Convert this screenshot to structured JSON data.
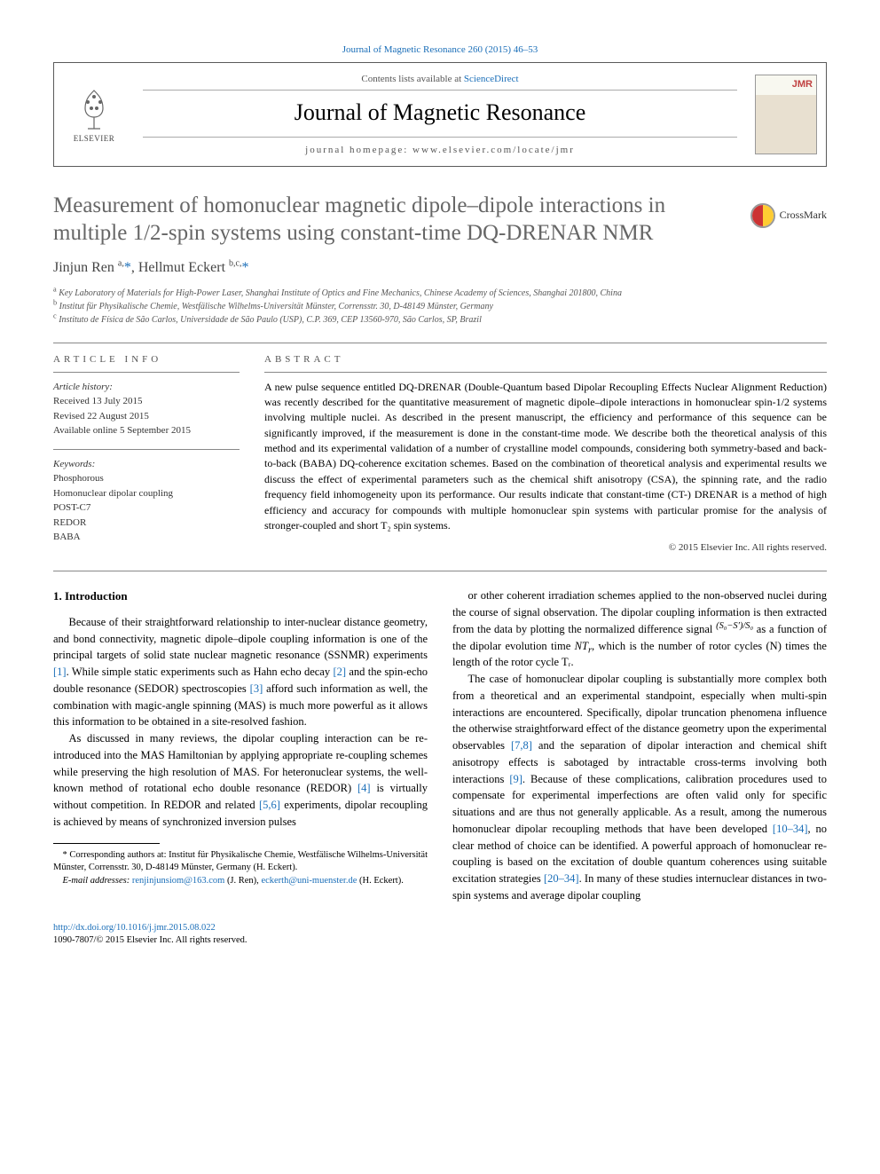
{
  "top_link": {
    "text": "Journal of Magnetic Resonance 260 (2015) 46–53",
    "color": "#1a6eb8"
  },
  "header": {
    "publisher_name": "ELSEVIER",
    "contents_text": "Contents lists available at ",
    "contents_link": "ScienceDirect",
    "journal_name": "Journal of Magnetic Resonance",
    "homepage_label": "journal homepage: www.elsevier.com/locate/jmr",
    "cover_label": "JMR"
  },
  "crossmark_label": "CrossMark",
  "title": "Measurement of homonuclear magnetic dipole–dipole interactions in multiple 1/2-spin systems using constant-time DQ-DRENAR NMR",
  "authors_html": "Jinjun Ren <sup>a,</sup><span class='corr'>*</span>, Hellmut Eckert <sup>b,c,</sup><span class='corr'>*</span>",
  "affiliations": [
    {
      "sup": "a",
      "text": "Key Laboratory of Materials for High-Power Laser, Shanghai Institute of Optics and Fine Mechanics, Chinese Academy of Sciences, Shanghai 201800, China"
    },
    {
      "sup": "b",
      "text": "Institut für Physikalische Chemie, Westfälische Wilhelms-Universität Münster, Corrensstr. 30, D-48149 Münster, Germany"
    },
    {
      "sup": "c",
      "text": "Instituto de Física de São Carlos, Universidade de São Paulo (USP), C.P. 369, CEP 13560-970, São Carlos, SP, Brazil"
    }
  ],
  "article_info": {
    "label": "ARTICLE INFO",
    "history_label": "Article history:",
    "history": [
      "Received 13 July 2015",
      "Revised 22 August 2015",
      "Available online 5 September 2015"
    ],
    "keywords_label": "Keywords:",
    "keywords": [
      "Phosphorous",
      "Homonuclear dipolar coupling",
      "POST-C7",
      "REDOR",
      "BABA"
    ]
  },
  "abstract": {
    "label": "ABSTRACT",
    "text": "A new pulse sequence entitled DQ-DRENAR (Double-Quantum based Dipolar Recoupling Effects Nuclear Alignment Reduction) was recently described for the quantitative measurement of magnetic dipole–dipole interactions in homonuclear spin-1/2 systems involving multiple nuclei. As described in the present manuscript, the efficiency and performance of this sequence can be significantly improved, if the measurement is done in the constant-time mode. We describe both the theoretical analysis of this method and its experimental validation of a number of crystalline model compounds, considering both symmetry-based and back-to-back (BABA) DQ-coherence excitation schemes. Based on the combination of theoretical analysis and experimental results we discuss the effect of experimental parameters such as the chemical shift anisotropy (CSA), the spinning rate, and the radio frequency field inhomogeneity upon its performance. Our results indicate that constant-time (CT-) DRENAR is a method of high efficiency and accuracy for compounds with multiple homonuclear spin systems with particular promise for the analysis of stronger-coupled and short T₂ spin systems.",
    "copyright": "© 2015 Elsevier Inc. All rights reserved."
  },
  "body": {
    "heading": "1. Introduction",
    "p1": "Because of their straightforward relationship to inter-nuclear distance geometry, and bond connectivity, magnetic dipole–dipole coupling information is one of the principal targets of solid state nuclear magnetic resonance (SSNMR) experiments [1]. While simple static experiments such as Hahn echo decay [2] and the spin-echo double resonance (SEDOR) spectroscopies [3] afford such information as well, the combination with magic-angle spinning (MAS) is much more powerful as it allows this information to be obtained in a site-resolved fashion.",
    "p2": "As discussed in many reviews, the dipolar coupling interaction can be re-introduced into the MAS Hamiltonian by applying appropriate re-coupling schemes while preserving the high resolution of MAS. For heteronuclear systems, the well-known method of rotational echo double resonance (REDOR) [4] is virtually without competition. In REDOR and related [5,6] experiments, dipolar recoupling is achieved by means of synchronized inversion pulses",
    "p3_pre": "or other coherent irradiation schemes applied to the non-observed nuclei during the course of signal observation. The dipolar coupling information is then extracted from the data by plotting the normalized difference signal ",
    "p3_formula": "(S₀−S′)/S₀",
    "p3_mid": " as a function of the dipolar evolution time ",
    "p3_post": ", which is the number of rotor cycles (N) times the length of the rotor cycle Tᵣ.",
    "p4": "The case of homonuclear dipolar coupling is substantially more complex both from a theoretical and an experimental standpoint, especially when multi-spin interactions are encountered. Specifically, dipolar truncation phenomena influence the otherwise straightforward effect of the distance geometry upon the experimental observables [7,8] and the separation of dipolar interaction and chemical shift anisotropy effects is sabotaged by intractable cross-terms involving both interactions [9]. Because of these complications, calibration procedures used to compensate for experimental imperfections are often valid only for specific situations and are thus not generally applicable. As a result, among the numerous homonuclear dipolar recoupling methods that have been developed [10–34], no clear method of choice can be identified. A powerful approach of homonuclear re-coupling is based on the excitation of double quantum coherences using suitable excitation strategies [20–34]. In many of these studies internuclear distances in two-spin systems and average dipolar coupling",
    "refs": {
      "r1": "[1]",
      "r2": "[2]",
      "r3": "[3]",
      "r4": "[4]",
      "r56": "[5,6]",
      "r78": "[7,8]",
      "r9": "[9]",
      "r1034": "[10–34]",
      "r2034": "[20–34]"
    }
  },
  "footnotes": {
    "corr": "* Corresponding authors at: Institut für Physikalische Chemie, Westfälische Wilhelms-Universität Münster, Corrensstr. 30, D-48149 Münster, Germany (H. Eckert).",
    "email_label": "E-mail addresses: ",
    "email1": "renjinjunsiom@163.com",
    "email1_who": " (J. Ren), ",
    "email2": "eckerth@uni-muenster.de",
    "email2_who": " (H. Eckert)."
  },
  "footer": {
    "doi": "http://dx.doi.org/10.1016/j.jmr.2015.08.022",
    "issn": "1090-7807/© 2015 Elsevier Inc. All rights reserved."
  },
  "colors": {
    "link": "#1a6eb8",
    "title_gray": "#666666",
    "border": "#5a5a5a",
    "rule": "#888888"
  }
}
